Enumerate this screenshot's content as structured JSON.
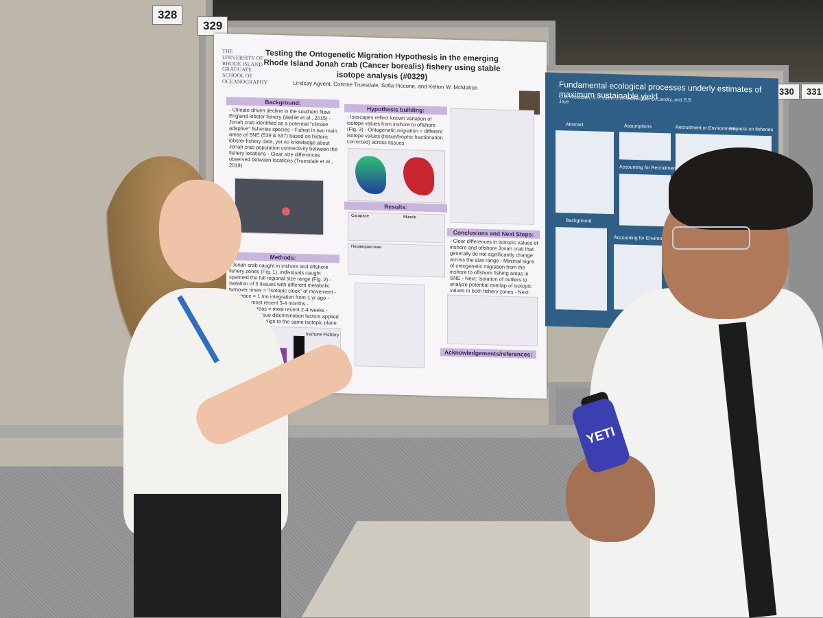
{
  "booths": {
    "left": "328",
    "mid": "329",
    "right": "330",
    "far_right": "331"
  },
  "poster1": {
    "logo": "THE UNIVERSITY OF RHODE ISLAND GRADUATE SCHOOL OF OCEANOGRAPHY",
    "title": "Testing the Ontogenetic Migration Hypothesis in the emerging Rhode Island Jonah crab (Cancer borealis) fishery using stable isotope analysis (#0329)",
    "authors": "Lindsay Agvent, Corinne Truesdale, Sofia Piccone, and Kelton W. McMahon",
    "background_head": "Background:",
    "background_text": "- Climate driven decline in the southern New England lobster fishery (Wahle et al., 2015) - Jonah crab identified as a potential \"climate adaptive\" fisheries species - Fished in two main areas of SNE (539 & 537) based on historic lobster fishery data, yet no knowledge about Jonah crab population connectivity between the fishery locations - Clear size differences observed between locations (Truesdale et al., 2019)",
    "hypothesis_head": "Hypothesis building:",
    "hypothesis_text": "- Isoscapes reflect known variation of isotope values from inshore to offshore (Fig. 3) - Ontogenetic migration = different isotope values (tissue/trophic fractionation corrected) across tissues",
    "methods_head": "Methods:",
    "methods_text": "- Jonah crab caught in inshore and offshore fishery zones (Fig. 1), individuals caught spanned the full regional size range (Fig. 2) - Isolation of 3 tissues with different metabolic turnover times = \"isotopic clock\" of movement - Carapace = 1 mo integration from 1 yr ago - Muscle = most recent 3-4 months - Hepatopancreas = most recent 2-4 weeks - Trophic and tissue discrimination factors applied to all tissues to align to the same isotopic plane",
    "results_head": "Results:",
    "conclusions_head": "Conclusions and Next Steps:",
    "conclusions_text": "- Clear differences in isotopic values of inshore and offshore Jonah crab that generally do not significantly change across the size range - Minimal signs of ontogenetic migration from the inshore to offshore fishing areas in SNE - Next: Isolation of outliers to analyze potential overlap of isotopic values in both fishery zones - Next: Use assignR to improve geolocation of residence across the SNE isoscape",
    "ack_head": "Acknowledgements/references:",
    "fig_labels": {
      "inshore": "Inshore Fishery",
      "carapace": "Carapace",
      "muscle": "Muscle",
      "hepatopancreas": "Hepatopancreas"
    }
  },
  "poster2": {
    "title": "Fundamental ecological processes underly estimates of maximum sustainable yield",
    "authors": "C.B. Woodson, S.Y. Litvin, J.R. Schramski, C. Landry, and S.B. Joye",
    "abstract": "Abstract",
    "assumptions": "Assumptions",
    "recruitment": "Recruitment or Environment",
    "impacts": "Impacts on fisheries",
    "background": "Background",
    "accounting_recruitment": "Accounting for Recruitment",
    "accounting_environment": "Accounting for Environment"
  },
  "bottle_brand": "YETI"
}
